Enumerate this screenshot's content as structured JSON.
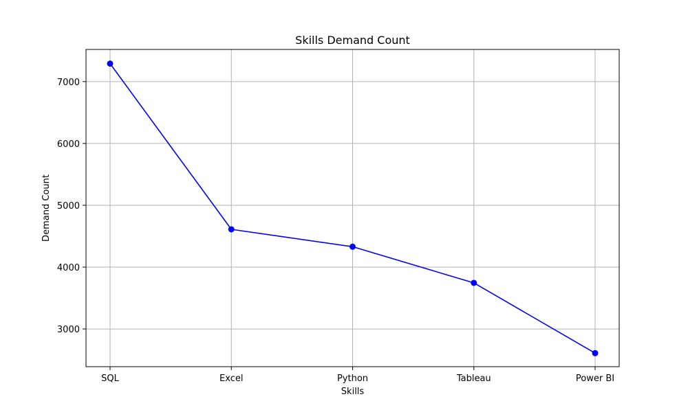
{
  "chart_data": {
    "type": "line",
    "title": "Skills Demand Count",
    "xlabel": "Skills",
    "ylabel": "Demand Count",
    "categories": [
      "SQL",
      "Excel",
      "Python",
      "Tableau",
      "Power BI"
    ],
    "series": [
      {
        "values": [
          7291,
          4611,
          4330,
          3745,
          2609
        ],
        "color": "#0000ff",
        "marker": "circle"
      }
    ],
    "ylim": [
      2390,
      7520
    ],
    "yticks": [
      3000,
      4000,
      5000,
      6000,
      7000
    ],
    "grid": true,
    "legend": "none"
  }
}
